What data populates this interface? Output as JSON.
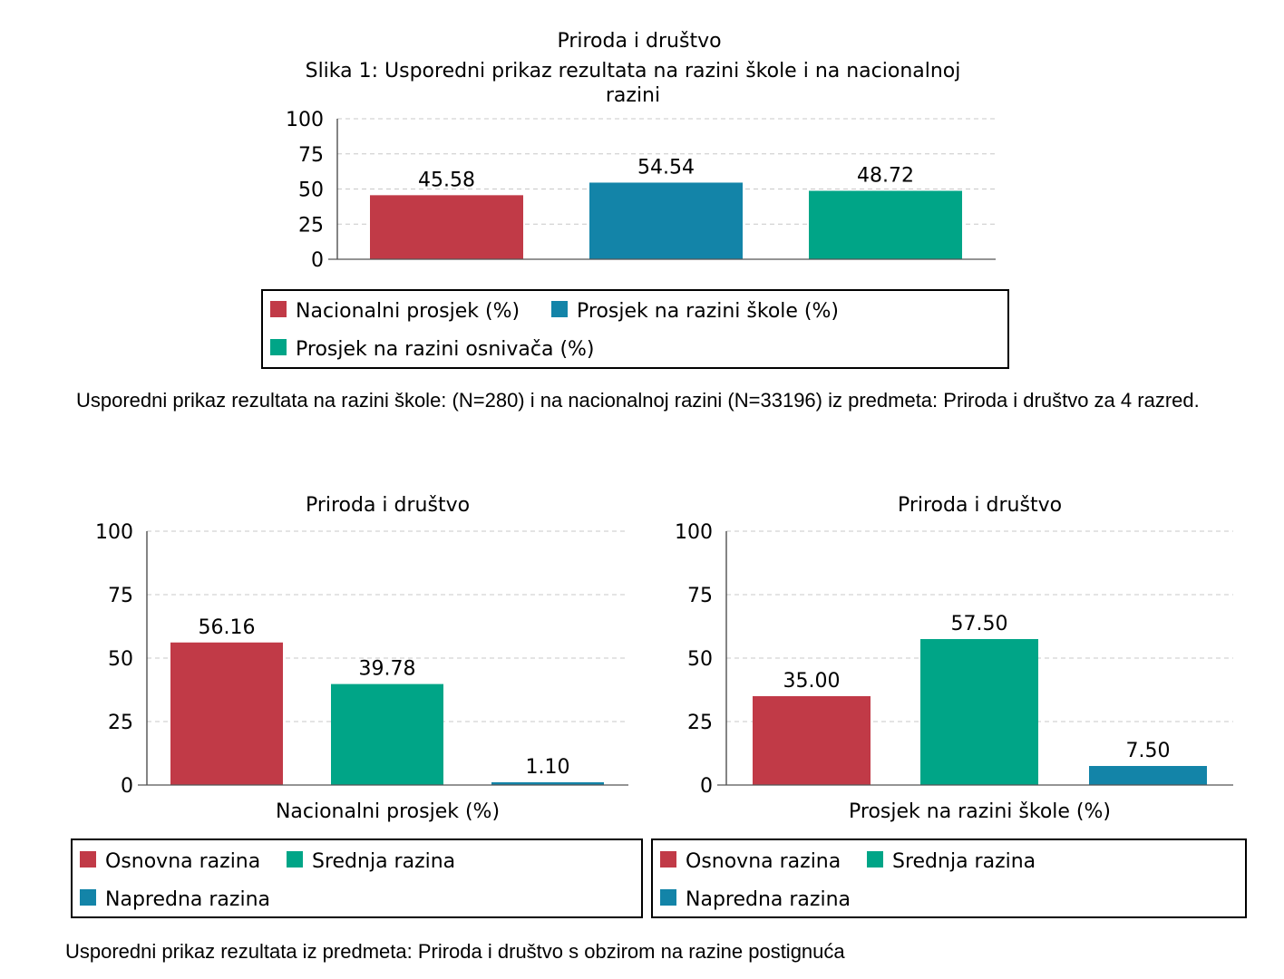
{
  "chart_data": [
    {
      "type": "bar",
      "title": "Priroda i društvo",
      "subtitle_lines": [
        "Slika 1: Usporedni prikaz rezultata na razini škole i na nacionalnoj",
        "razini"
      ],
      "xlabel": "",
      "ylabel": "",
      "ylim": [
        0,
        100
      ],
      "yticks": [
        "0",
        "25",
        "50",
        "75",
        "100"
      ],
      "grid": true,
      "legend_position": "bottom",
      "categories": [
        "Nacionalni prosjek (%)",
        "Prosjek na razini škole (%)",
        "Prosjek na razini osnivača (%)"
      ],
      "values": [
        45.58,
        54.54,
        48.72
      ],
      "value_labels": [
        "45.58",
        "54.54",
        "48.72"
      ],
      "colors": [
        "#c13a47",
        "#1384a8",
        "#00a587"
      ],
      "legend": [
        "Nacionalni prosjek (%)",
        "Prosjek na razini škole (%)",
        "Prosjek na razini osnivača (%)"
      ]
    },
    {
      "type": "bar",
      "title": "Priroda i društvo",
      "xlabel": "Nacionalni prosjek (%)",
      "ylabel": "",
      "ylim": [
        0,
        100
      ],
      "yticks": [
        "0",
        "25",
        "50",
        "75",
        "100"
      ],
      "grid": true,
      "legend_position": "bottom",
      "categories": [
        "Osnovna razina",
        "Srednja razina",
        "Napredna razina"
      ],
      "values": [
        56.16,
        39.78,
        1.1
      ],
      "value_labels": [
        "56.16",
        "39.78",
        "1.10"
      ],
      "colors": [
        "#c13a47",
        "#00a587",
        "#1384a8"
      ],
      "legend": [
        "Osnovna razina",
        "Srednja razina",
        "Napredna razina"
      ]
    },
    {
      "type": "bar",
      "title": "Priroda i društvo",
      "xlabel": "Prosjek na razini škole (%)",
      "ylabel": "",
      "ylim": [
        0,
        100
      ],
      "yticks": [
        "0",
        "25",
        "50",
        "75",
        "100"
      ],
      "grid": true,
      "legend_position": "bottom",
      "categories": [
        "Osnovna razina",
        "Srednja razina",
        "Napredna razina"
      ],
      "values": [
        35.0,
        57.5,
        7.5
      ],
      "value_labels": [
        "35.00",
        "57.50",
        "7.50"
      ],
      "colors": [
        "#c13a47",
        "#00a587",
        "#1384a8"
      ],
      "legend": [
        "Osnovna razina",
        "Srednja razina",
        "Napredna razina"
      ]
    }
  ],
  "captions": {
    "top": "Usporedni prikaz rezultata na razini škole: (N=280) i na nacionalnoj razini (N=33196) iz predmeta: Priroda i društvo za 4 razred.",
    "bottom": "Usporedni prikaz rezultata iz predmeta: Priroda i društvo s obzirom na razine postignuća"
  }
}
